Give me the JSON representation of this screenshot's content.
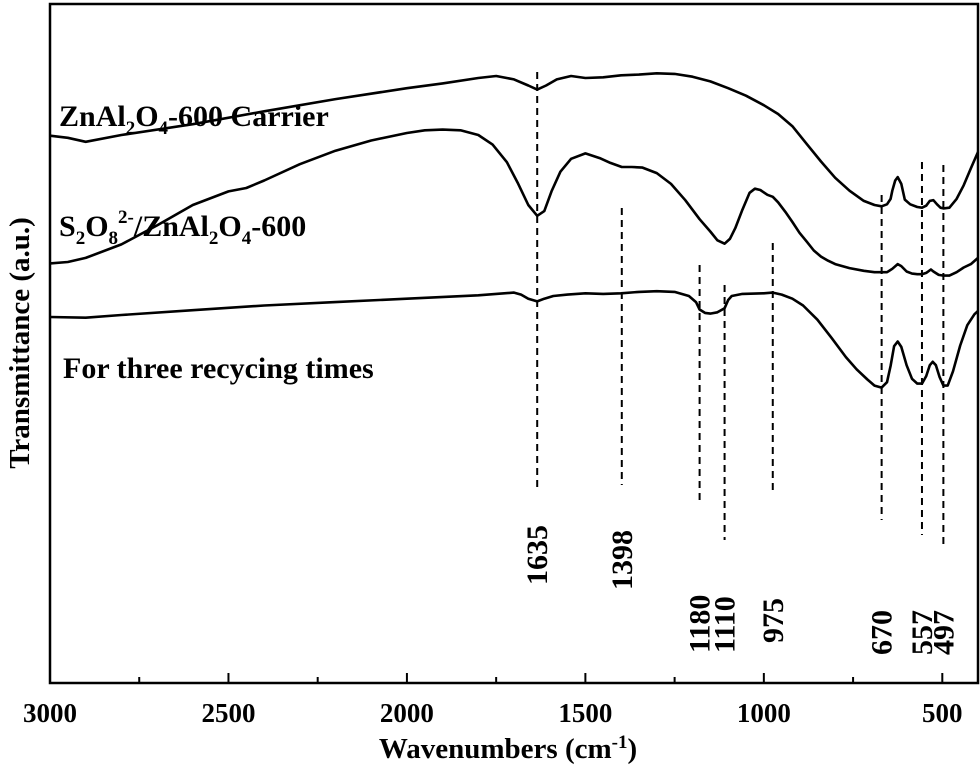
{
  "chart_data": {
    "type": "line",
    "xlabel": "Wavenumbers (cm",
    "xlabel_sup": "-1",
    "xlabel_end": ")",
    "ylabel": "Transmittance (a.u.)",
    "xlim": [
      3000,
      400
    ],
    "x_reversed": true,
    "xticks": [
      3000,
      2500,
      2000,
      1500,
      1000,
      500
    ],
    "yticks": "none",
    "grid": false,
    "series": [
      {
        "name_parts": [
          {
            "t": "ZnAl"
          },
          {
            "t": "2",
            "s": "sub"
          },
          {
            "t": "O"
          },
          {
            "t": "4",
            "s": "sub"
          },
          {
            "t": "-600 Carrier"
          }
        ],
        "points": [
          [
            3000,
            0.806
          ],
          [
            2950,
            0.803
          ],
          [
            2900,
            0.797
          ],
          [
            2800,
            0.807
          ],
          [
            2600,
            0.823
          ],
          [
            2400,
            0.842
          ],
          [
            2200,
            0.86
          ],
          [
            2000,
            0.876
          ],
          [
            1900,
            0.883
          ],
          [
            1800,
            0.891
          ],
          [
            1750,
            0.894
          ],
          [
            1700,
            0.889
          ],
          [
            1660,
            0.88
          ],
          [
            1635,
            0.874
          ],
          [
            1610,
            0.88
          ],
          [
            1580,
            0.889
          ],
          [
            1540,
            0.894
          ],
          [
            1500,
            0.891
          ],
          [
            1450,
            0.892
          ],
          [
            1400,
            0.895
          ],
          [
            1350,
            0.896
          ],
          [
            1300,
            0.898
          ],
          [
            1250,
            0.897
          ],
          [
            1200,
            0.893
          ],
          [
            1150,
            0.886
          ],
          [
            1100,
            0.876
          ],
          [
            1050,
            0.865
          ],
          [
            1000,
            0.851
          ],
          [
            960,
            0.838
          ],
          [
            920,
            0.82
          ],
          [
            880,
            0.794
          ],
          [
            840,
            0.768
          ],
          [
            800,
            0.744
          ],
          [
            760,
            0.725
          ],
          [
            720,
            0.71
          ],
          [
            690,
            0.704
          ],
          [
            670,
            0.702
          ],
          [
            655,
            0.705
          ],
          [
            645,
            0.713
          ],
          [
            640,
            0.725
          ],
          [
            632,
            0.74
          ],
          [
            625,
            0.745
          ],
          [
            615,
            0.735
          ],
          [
            605,
            0.712
          ],
          [
            590,
            0.705
          ],
          [
            570,
            0.701
          ],
          [
            557,
            0.7
          ],
          [
            545,
            0.703
          ],
          [
            535,
            0.71
          ],
          [
            525,
            0.711
          ],
          [
            515,
            0.705
          ],
          [
            505,
            0.7
          ],
          [
            497,
            0.699
          ],
          [
            480,
            0.7
          ],
          [
            460,
            0.713
          ],
          [
            440,
            0.733
          ],
          [
            420,
            0.758
          ],
          [
            400,
            0.782
          ]
        ]
      },
      {
        "name_parts": [
          {
            "t": "S"
          },
          {
            "t": "2",
            "s": "sub"
          },
          {
            "t": "O"
          },
          {
            "t": "8",
            "s": "sub"
          },
          {
            "t": "2-",
            "s": "sup"
          },
          {
            "t": "/ZnAl"
          },
          {
            "t": "2",
            "s": "sub"
          },
          {
            "t": "O"
          },
          {
            "t": "4",
            "s": "sub"
          },
          {
            "t": "-600"
          }
        ],
        "points": [
          [
            3000,
            0.618
          ],
          [
            2950,
            0.62
          ],
          [
            2900,
            0.626
          ],
          [
            2800,
            0.646
          ],
          [
            2700,
            0.674
          ],
          [
            2600,
            0.704
          ],
          [
            2500,
            0.724
          ],
          [
            2450,
            0.729
          ],
          [
            2400,
            0.74
          ],
          [
            2300,
            0.764
          ],
          [
            2200,
            0.784
          ],
          [
            2100,
            0.799
          ],
          [
            2000,
            0.81
          ],
          [
            1950,
            0.814
          ],
          [
            1900,
            0.815
          ],
          [
            1850,
            0.814
          ],
          [
            1800,
            0.807
          ],
          [
            1760,
            0.793
          ],
          [
            1720,
            0.767
          ],
          [
            1690,
            0.737
          ],
          [
            1660,
            0.704
          ],
          [
            1635,
            0.688
          ],
          [
            1615,
            0.695
          ],
          [
            1595,
            0.724
          ],
          [
            1570,
            0.753
          ],
          [
            1540,
            0.772
          ],
          [
            1500,
            0.78
          ],
          [
            1460,
            0.773
          ],
          [
            1430,
            0.766
          ],
          [
            1398,
            0.76
          ],
          [
            1370,
            0.76
          ],
          [
            1340,
            0.759
          ],
          [
            1300,
            0.751
          ],
          [
            1260,
            0.735
          ],
          [
            1220,
            0.711
          ],
          [
            1180,
            0.683
          ],
          [
            1150,
            0.665
          ],
          [
            1130,
            0.652
          ],
          [
            1110,
            0.647
          ],
          [
            1095,
            0.654
          ],
          [
            1080,
            0.67
          ],
          [
            1060,
            0.697
          ],
          [
            1040,
            0.722
          ],
          [
            1025,
            0.728
          ],
          [
            1010,
            0.726
          ],
          [
            990,
            0.719
          ],
          [
            975,
            0.716
          ],
          [
            960,
            0.708
          ],
          [
            940,
            0.694
          ],
          [
            920,
            0.679
          ],
          [
            900,
            0.663
          ],
          [
            880,
            0.65
          ],
          [
            860,
            0.637
          ],
          [
            840,
            0.628
          ],
          [
            820,
            0.622
          ],
          [
            800,
            0.617
          ],
          [
            760,
            0.611
          ],
          [
            720,
            0.607
          ],
          [
            690,
            0.605
          ],
          [
            670,
            0.605
          ],
          [
            655,
            0.605
          ],
          [
            640,
            0.61
          ],
          [
            625,
            0.617
          ],
          [
            615,
            0.614
          ],
          [
            600,
            0.606
          ],
          [
            585,
            0.603
          ],
          [
            570,
            0.602
          ],
          [
            557,
            0.602
          ],
          [
            545,
            0.604
          ],
          [
            532,
            0.609
          ],
          [
            525,
            0.606
          ],
          [
            510,
            0.601
          ],
          [
            497,
            0.6
          ],
          [
            480,
            0.6
          ],
          [
            460,
            0.605
          ],
          [
            440,
            0.612
          ],
          [
            420,
            0.617
          ],
          [
            400,
            0.626
          ]
        ]
      },
      {
        "name_parts": [
          {
            "t": "For three recycing times"
          }
        ],
        "points": [
          [
            3000,
            0.539
          ],
          [
            2900,
            0.538
          ],
          [
            2800,
            0.542
          ],
          [
            2600,
            0.549
          ],
          [
            2400,
            0.556
          ],
          [
            2200,
            0.561
          ],
          [
            2000,
            0.566
          ],
          [
            1800,
            0.571
          ],
          [
            1700,
            0.575
          ],
          [
            1680,
            0.572
          ],
          [
            1660,
            0.566
          ],
          [
            1635,
            0.562
          ],
          [
            1615,
            0.566
          ],
          [
            1590,
            0.57
          ],
          [
            1550,
            0.572
          ],
          [
            1500,
            0.574
          ],
          [
            1450,
            0.573
          ],
          [
            1400,
            0.574
          ],
          [
            1350,
            0.576
          ],
          [
            1300,
            0.577
          ],
          [
            1250,
            0.576
          ],
          [
            1210,
            0.57
          ],
          [
            1190,
            0.561
          ],
          [
            1180,
            0.55
          ],
          [
            1165,
            0.545
          ],
          [
            1150,
            0.544
          ],
          [
            1130,
            0.546
          ],
          [
            1110,
            0.552
          ],
          [
            1100,
            0.564
          ],
          [
            1090,
            0.57
          ],
          [
            1060,
            0.573
          ],
          [
            1000,
            0.574
          ],
          [
            975,
            0.575
          ],
          [
            950,
            0.572
          ],
          [
            920,
            0.566
          ],
          [
            890,
            0.556
          ],
          [
            850,
            0.535
          ],
          [
            810,
            0.508
          ],
          [
            770,
            0.48
          ],
          [
            740,
            0.462
          ],
          [
            710,
            0.447
          ],
          [
            690,
            0.438
          ],
          [
            670,
            0.435
          ],
          [
            655,
            0.443
          ],
          [
            645,
            0.467
          ],
          [
            635,
            0.496
          ],
          [
            625,
            0.503
          ],
          [
            615,
            0.495
          ],
          [
            600,
            0.468
          ],
          [
            585,
            0.448
          ],
          [
            570,
            0.441
          ],
          [
            557,
            0.441
          ],
          [
            545,
            0.452
          ],
          [
            535,
            0.468
          ],
          [
            527,
            0.473
          ],
          [
            518,
            0.468
          ],
          [
            508,
            0.451
          ],
          [
            497,
            0.438
          ],
          [
            485,
            0.438
          ],
          [
            470,
            0.459
          ],
          [
            450,
            0.497
          ],
          [
            430,
            0.527
          ],
          [
            410,
            0.543
          ],
          [
            400,
            0.548
          ]
        ]
      }
    ],
    "peak_marks": [
      {
        "wavenumber": 1635,
        "label": "1635"
      },
      {
        "wavenumber": 1398,
        "label": "1398"
      },
      {
        "wavenumber": 1180,
        "label": "1180"
      },
      {
        "wavenumber": 1110,
        "label": "1110"
      },
      {
        "wavenumber": 975,
        "label": "975"
      },
      {
        "wavenumber": 670,
        "label": "670"
      },
      {
        "wavenumber": 557,
        "label": "557"
      },
      {
        "wavenumber": 497,
        "label": "497"
      }
    ]
  }
}
